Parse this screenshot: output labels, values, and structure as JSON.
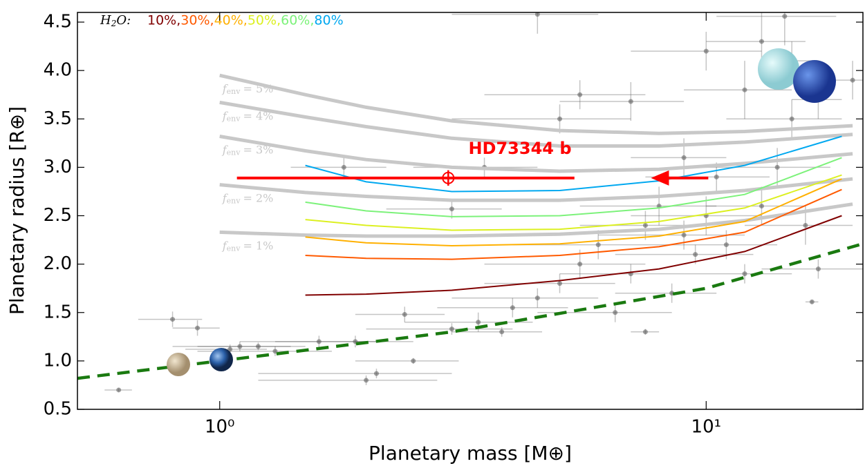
{
  "chart_data": {
    "type": "line",
    "xlabel": "Planetary mass [M⊕]",
    "ylabel": "Planetary radius [R⊕]",
    "xscale": "log",
    "xlim": [
      0.51,
      21
    ],
    "ylim": [
      0.5,
      4.6
    ],
    "xticks": [
      {
        "value": 1,
        "label": "10⁰"
      },
      {
        "value": 10,
        "label": "10¹"
      }
    ],
    "yticks": [
      {
        "value": 0.5,
        "label": "0.5"
      },
      {
        "value": 1,
        "label": "1.0"
      },
      {
        "value": 1.5,
        "label": "1.5"
      },
      {
        "value": 2,
        "label": "2.0"
      },
      {
        "value": 2.5,
        "label": "2.5"
      },
      {
        "value": 3,
        "label": "3.0"
      },
      {
        "value": 3.5,
        "label": "3.5"
      },
      {
        "value": 4,
        "label": "4.0"
      },
      {
        "value": 4.5,
        "label": "4.5"
      }
    ],
    "observed": {
      "color": "#555555",
      "x": [
        0.62,
        0.8,
        0.9,
        1.05,
        1.1,
        1.2,
        1.3,
        1.6,
        1.9,
        2.1,
        2.0,
        2.5,
        2.4,
        3.0,
        3.4,
        4.0,
        4.5,
        5.0,
        5.5,
        6.0,
        6.5,
        7.0,
        7.5,
        8.0,
        8.5,
        9.0,
        9.5,
        10,
        10.5,
        11,
        12,
        13,
        14,
        15,
        16,
        17,
        16.5,
        3.5,
        5.0,
        5.5,
        7,
        9,
        10,
        13,
        14.5,
        4.5,
        15,
        17,
        20,
        1.8,
        3.0,
        7.5,
        3.8,
        12
      ],
      "values": [
        0.7,
        1.43,
        1.34,
        1.12,
        1.15,
        1.15,
        1.1,
        1.2,
        1.2,
        0.87,
        0.8,
        1.0,
        1.48,
        1.33,
        1.4,
        1.55,
        1.65,
        1.8,
        2.0,
        2.2,
        1.5,
        1.9,
        2.4,
        2.6,
        1.7,
        2.3,
        2.1,
        2.5,
        2.9,
        2.2,
        1.9,
        2.6,
        3.0,
        3.5,
        2.4,
        1.95,
        1.61,
        3.0,
        3.5,
        3.75,
        3.68,
        3.1,
        4.2,
        4.3,
        4.56,
        4.58,
        4.1,
        3.7,
        3.9,
        3.0,
        2.57,
        1.3,
        1.3,
        3.8
      ],
      "xerr": [
        0.04,
        0.12,
        0.1,
        0.2,
        0.3,
        0.3,
        0.4,
        0.5,
        0.6,
        0.9,
        0.8,
        0.6,
        0.5,
        1.0,
        1.0,
        1.2,
        1.5,
        1.5,
        2,
        2,
        2,
        2,
        2,
        2.5,
        2,
        3,
        3,
        3,
        3,
        3,
        3,
        3,
        4,
        4,
        4,
        4,
        0.5,
        1,
        2,
        2,
        2,
        2,
        3,
        3,
        4,
        1.5,
        2,
        2,
        2,
        0.4,
        0.8,
        0.5,
        0.8,
        3
      ],
      "yerr": [
        0.02,
        0.08,
        0.08,
        0.05,
        0.05,
        0.04,
        0.05,
        0.06,
        0.06,
        0.05,
        0.05,
        0.03,
        0.08,
        0.06,
        0.1,
        0.1,
        0.1,
        0.1,
        0.15,
        0.15,
        0.1,
        0.1,
        0.15,
        0.2,
        0.1,
        0.15,
        0.1,
        0.2,
        0.15,
        0.15,
        0.1,
        0.2,
        0.2,
        0.2,
        0.2,
        0.1,
        0.02,
        0.1,
        0.15,
        0.15,
        0.2,
        0.2,
        0.2,
        0.3,
        0.3,
        0.2,
        0.2,
        0.2,
        0.2,
        0.1,
        0.1,
        0.03,
        0.05,
        0.3
      ]
    },
    "env_label": {
      "symbol": "f",
      "subscript": "env"
    },
    "envelope_series": [
      {
        "name": "= 5%",
        "color": "#c8c8c8",
        "x": [
          1,
          1.5,
          2,
          3,
          5,
          8,
          12,
          20
        ],
        "values": [
          3.95,
          3.75,
          3.62,
          3.48,
          3.38,
          3.35,
          3.37,
          3.43
        ]
      },
      {
        "name": "= 4%",
        "color": "#c8c8c8",
        "x": [
          1,
          1.5,
          2,
          3,
          5,
          8,
          12,
          20
        ],
        "values": [
          3.67,
          3.52,
          3.42,
          3.3,
          3.22,
          3.22,
          3.26,
          3.34
        ]
      },
      {
        "name": "= 3%",
        "color": "#c8c8c8",
        "x": [
          1,
          1.5,
          2,
          3,
          5,
          8,
          12,
          20
        ],
        "values": [
          3.32,
          3.17,
          3.08,
          3.0,
          2.96,
          2.98,
          3.04,
          3.14
        ]
      },
      {
        "name": "= 2%",
        "color": "#c8c8c8",
        "x": [
          1,
          1.5,
          2,
          3,
          5,
          8,
          12,
          20
        ],
        "values": [
          2.82,
          2.74,
          2.7,
          2.66,
          2.66,
          2.7,
          2.76,
          2.88
        ]
      },
      {
        "name": "= 1%",
        "color": "#c8c8c8",
        "x": [
          1,
          1.5,
          2,
          3,
          5,
          8,
          12,
          20
        ],
        "values": [
          2.33,
          2.3,
          2.29,
          2.29,
          2.31,
          2.36,
          2.45,
          2.62
        ]
      }
    ],
    "legend_title": {
      "symbol": "H",
      "subscript": "2",
      "rest": "O:"
    },
    "series": [
      {
        "name": "10%,",
        "color": "#800000",
        "x": [
          1.5,
          2,
          3,
          5,
          8,
          12,
          19
        ],
        "values": [
          1.68,
          1.69,
          1.73,
          1.83,
          1.95,
          2.13,
          2.5
        ]
      },
      {
        "name": "30%,",
        "color": "#ff5a00",
        "x": [
          1.5,
          2,
          3,
          5,
          8,
          12,
          19
        ],
        "values": [
          2.09,
          2.06,
          2.05,
          2.09,
          2.18,
          2.33,
          2.77
        ]
      },
      {
        "name": "40%,",
        "color": "#ffb000",
        "x": [
          1.5,
          2,
          3,
          5,
          8,
          12,
          19
        ],
        "values": [
          2.28,
          2.22,
          2.19,
          2.21,
          2.29,
          2.44,
          2.88
        ]
      },
      {
        "name": "50%,",
        "color": "#dcf020",
        "x": [
          1.5,
          2,
          3,
          5,
          8,
          12,
          19
        ],
        "values": [
          2.46,
          2.4,
          2.35,
          2.36,
          2.44,
          2.58,
          2.92
        ]
      },
      {
        "name": "60%,",
        "color": "#7cf27a",
        "x": [
          1.5,
          2,
          3,
          5,
          8,
          12,
          19
        ],
        "values": [
          2.64,
          2.55,
          2.49,
          2.5,
          2.58,
          2.72,
          3.1
        ]
      },
      {
        "name": "80%",
        "color": "#00a8f0",
        "x": [
          1.5,
          2,
          3,
          5,
          8,
          12,
          19
        ],
        "values": [
          3.02,
          2.85,
          2.75,
          2.76,
          2.86,
          3.02,
          3.32
        ]
      }
    ],
    "rocky": {
      "color": "#1a7a10",
      "x": [
        0.51,
        1,
        3,
        10,
        21
      ],
      "values": [
        0.82,
        1.0,
        1.3,
        1.75,
        2.21
      ]
    },
    "highlight": {
      "label": "HD73344 b",
      "color": "#ff0000",
      "x": 2.95,
      "value": 2.89,
      "xerr_low": 1.865,
      "xerr_high": 2.41,
      "yerr": 0.08,
      "arrow_from": 10.1,
      "arrow_to": 7.7
    }
  }
}
